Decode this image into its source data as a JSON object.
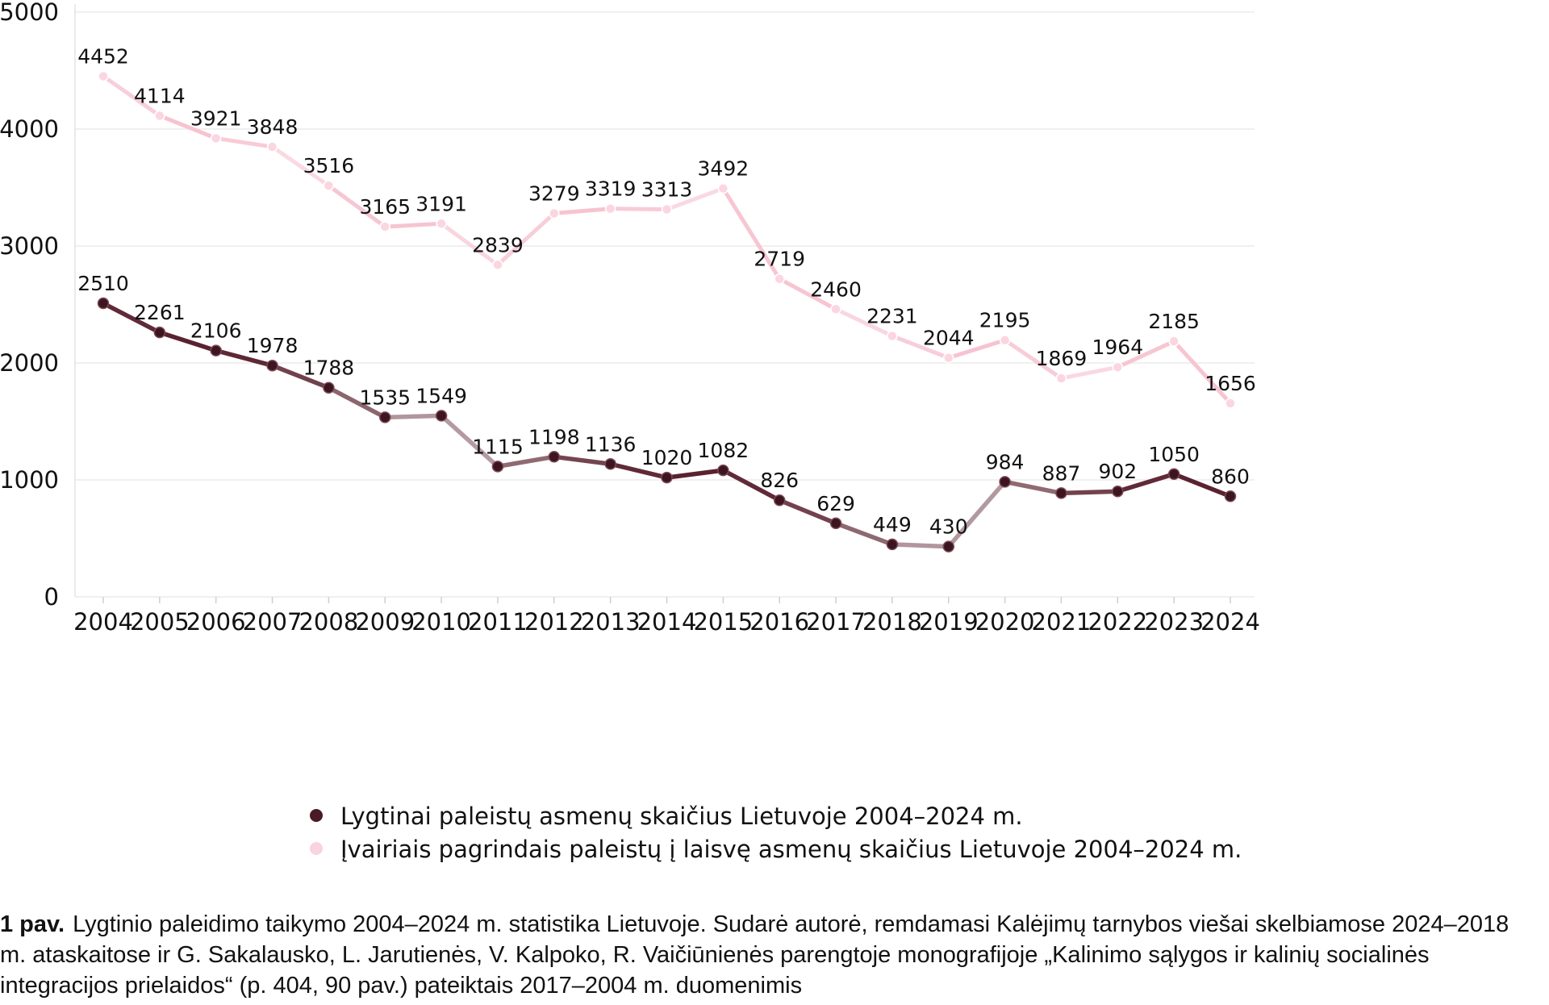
{
  "chart_data": {
    "type": "line",
    "x": [
      "2004",
      "2005",
      "2006",
      "2007",
      "2008",
      "2009",
      "2010",
      "2011",
      "2012",
      "2013",
      "2014",
      "2015",
      "2016",
      "2017",
      "2018",
      "2019",
      "2020",
      "2021",
      "2022",
      "2023",
      "2024"
    ],
    "ylim": [
      0,
      5000
    ],
    "yticks": [
      "0",
      "1000",
      "2000",
      "3000",
      "4000",
      "5000"
    ],
    "grid": true,
    "legend_position": "bottom",
    "series": [
      {
        "name": "Įvairiais pagrindais paleistų į laisvę asmenų skaičius Lietuvoje 2004–2024 m.",
        "color": "#f7c3d1",
        "values": [
          4452,
          4114,
          3921,
          3848,
          3516,
          3165,
          3191,
          2839,
          3279,
          3319,
          3313,
          3492,
          2719,
          2460,
          2231,
          2044,
          2195,
          1869,
          1964,
          2185,
          1656
        ]
      },
      {
        "name": "Lygtinai paleistų asmenų skaičius Lietuvoje 2004–2024 m.",
        "color": "#5a2230",
        "values": [
          2510,
          2261,
          2106,
          1978,
          1788,
          1535,
          1549,
          1115,
          1198,
          1136,
          1020,
          1082,
          826,
          629,
          449,
          430,
          984,
          887,
          902,
          1050,
          860
        ]
      }
    ]
  },
  "legend": {
    "items": [
      {
        "label": "Lygtinai paleistų asmenų skaičius Lietuvoje 2004–2024 m.",
        "color": "#4a1a26"
      },
      {
        "label": "Įvairiais pagrindais paleistų į laisvę asmenų skaičius Lietuvoje 2004–2024 m.",
        "color": "#f9d3de"
      }
    ]
  },
  "caption": {
    "lead": "1 pav.",
    "text": "Lygtinio paleidimo taikymo 2004–2024 m. statistika Lietuvoje. Sudarė autorė, remdamasi Kalėjimų tarnybos viešai skelbiamose 2024–2018 m. ataskaitose ir G. Sakalausko, L. Jarutienės, V. Kalpoko, R. Vaičiūnienės parengtoje monografijoje „Kalinimo sąlygos ir kalinių socialinės integracijos prielaidos“ (p. 404, 90 pav.) pateiktais 2017–2004 m. duomenimis"
  }
}
